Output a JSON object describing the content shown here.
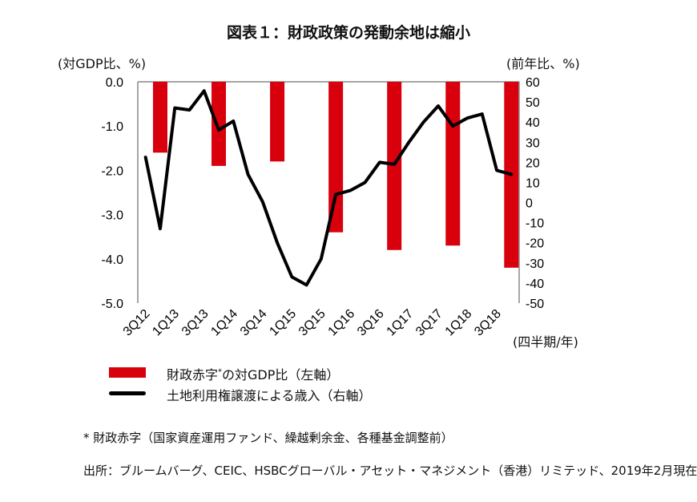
{
  "chart_data": {
    "type": "bar+line",
    "title": "図表１：財政政策の発動余地は縮小",
    "ylabel_left": "(対GDP比、%)",
    "ylabel_right": "(前年比、%)",
    "xlabel": "(四半期/年)",
    "ylim_left": [
      -5.0,
      0.0
    ],
    "yticks_left": [
      "0.0",
      "-1.0",
      "-2.0",
      "-3.0",
      "-4.0",
      "-5.0"
    ],
    "ylim_right": [
      -50,
      60
    ],
    "yticks_right": [
      "60",
      "50",
      "40",
      "30",
      "20",
      "10",
      "0",
      "-10",
      "-20",
      "-30",
      "-40",
      "-50"
    ],
    "x_quarters": [
      "3Q12",
      "4Q12",
      "1Q13",
      "2Q13",
      "3Q13",
      "4Q13",
      "1Q14",
      "2Q14",
      "3Q14",
      "4Q14",
      "1Q15",
      "2Q15",
      "3Q15",
      "4Q15",
      "1Q16",
      "2Q16",
      "3Q16",
      "4Q16",
      "1Q17",
      "2Q17",
      "3Q17",
      "4Q17",
      "1Q18",
      "2Q18",
      "3Q18",
      "4Q18"
    ],
    "xtick_labels": [
      "3Q12",
      "1Q13",
      "3Q13",
      "1Q14",
      "3Q14",
      "1Q15",
      "3Q15",
      "1Q16",
      "3Q16",
      "1Q17",
      "3Q17",
      "1Q18",
      "3Q18"
    ],
    "series": [
      {
        "name": "財政赤字*の対GDP比（左軸）",
        "type": "bar",
        "axis": "left",
        "color": "#d9000d",
        "x": [
          "4Q12",
          "4Q13",
          "4Q14",
          "4Q15",
          "4Q16",
          "4Q17",
          "4Q18"
        ],
        "values": [
          -1.6,
          -1.9,
          -1.8,
          -3.4,
          -3.8,
          -3.7,
          -4.2
        ]
      },
      {
        "name": "土地利用権譲渡による歳入（右軸）",
        "type": "line",
        "axis": "right",
        "color": "#000000",
        "values": [
          22.5,
          -13,
          47,
          46,
          55.5,
          36,
          40.5,
          14,
          0.4,
          -20,
          -37,
          -41,
          -28,
          4,
          6,
          10,
          20,
          19,
          30,
          40,
          48,
          38,
          42,
          44,
          16,
          14
        ]
      }
    ],
    "legend": {
      "placement": "bottom-left",
      "bar_label_a": "財政赤字",
      "bar_label_star": "*",
      "bar_label_b": "の対GDP比（左軸）",
      "line_label": "土地利用権譲渡による歳入（右軸）"
    }
  },
  "notes": {
    "footnote": "* 財政赤字（国家資産運用ファンド、繰越剰余金、各種基金調整前）",
    "source": "出所：ブルームバーグ、CEIC、HSBCグローバル・アセット・マネジメント（香港）リミテッド、2019年2月現在"
  }
}
